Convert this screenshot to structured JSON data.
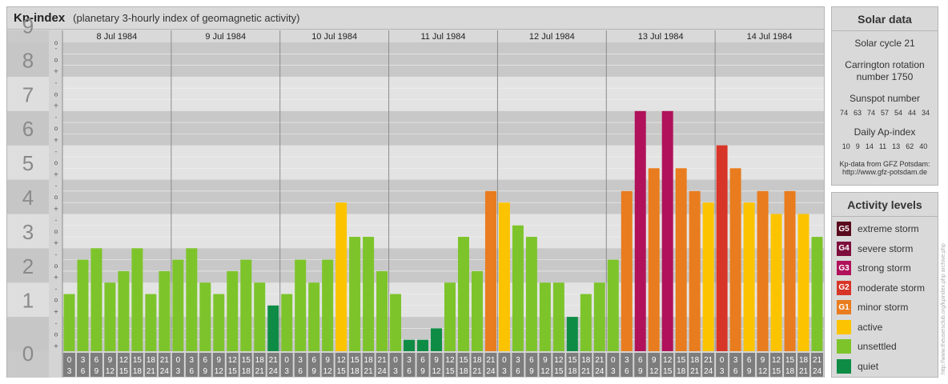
{
  "header": {
    "title": "Kp-index",
    "subtitle": "(planetary 3-hourly index of geomagnetic activity)"
  },
  "solar": {
    "title": "Solar data",
    "cycle": "Solar cycle 21",
    "carrington": "Carrington rotation number 1750",
    "sunspot_title": "Sunspot number",
    "sunspot_values": [
      "74",
      "63",
      "74",
      "57",
      "54",
      "44",
      "34"
    ],
    "ap_title": "Daily Ap-index",
    "ap_values": [
      "10",
      "9",
      "14",
      "11",
      "13",
      "62",
      "40"
    ],
    "credit_line1": "Kp-data from GFZ Potsdam:",
    "credit_line2": "http://www.gfz-potsdam.de"
  },
  "activity": {
    "title": "Activity levels",
    "items": [
      {
        "code": "G5",
        "label": "extreme storm",
        "color": "#5a0a1e"
      },
      {
        "code": "G4",
        "label": "severe storm",
        "color": "#7e0e3c"
      },
      {
        "code": "G3",
        "label": "strong storm",
        "color": "#b0115a"
      },
      {
        "code": "G2",
        "label": "moderate storm",
        "color": "#d73527"
      },
      {
        "code": "G1",
        "label": "minor storm",
        "color": "#e97c1e"
      },
      {
        "code": "",
        "label": "active",
        "color": "#fcc400"
      },
      {
        "code": "",
        "label": "unsettled",
        "color": "#7dc42b"
      },
      {
        "code": "",
        "label": "quiet",
        "color": "#0e8c45"
      }
    ]
  },
  "watermark": "http://www.theusersclub.org/kpindex.php   archive.php",
  "chart_data": {
    "type": "bar",
    "ylim": [
      0,
      9
    ],
    "y_ticks": [
      "0",
      "1",
      "2",
      "3",
      "4",
      "5",
      "6",
      "7",
      "8",
      "9"
    ],
    "minor_ticks": [
      "+",
      "o",
      "-"
    ],
    "days": [
      "8 Jul 1984",
      "9 Jul 1984",
      "10 Jul 1984",
      "11 Jul 1984",
      "12 Jul 1984",
      "13 Jul 1984",
      "14 Jul 1984"
    ],
    "hours_start": [
      "0",
      "3",
      "6",
      "9",
      "12",
      "15",
      "18",
      "21"
    ],
    "hours_end": [
      "3",
      "6",
      "9",
      "12",
      "15",
      "18",
      "21",
      "24"
    ],
    "kp": [
      [
        1.667,
        2.667,
        3.0,
        2.0,
        2.333,
        3.0,
        1.667,
        2.333
      ],
      [
        2.667,
        3.0,
        2.0,
        1.667,
        2.333,
        2.667,
        2.0,
        1.333
      ],
      [
        1.667,
        2.667,
        2.0,
        2.667,
        4.333,
        3.333,
        3.333,
        2.333
      ],
      [
        1.667,
        0.333,
        0.333,
        0.667,
        2.0,
        3.333,
        2.333,
        4.667
      ],
      [
        4.333,
        3.667,
        3.333,
        2.0,
        2.0,
        1.0,
        1.667,
        2.0
      ],
      [
        2.667,
        4.667,
        7.0,
        5.333,
        7.0,
        5.333,
        4.667,
        4.333
      ],
      [
        6.0,
        5.333,
        4.333,
        4.667,
        4.0,
        4.667,
        4.0,
        3.333
      ]
    ]
  }
}
